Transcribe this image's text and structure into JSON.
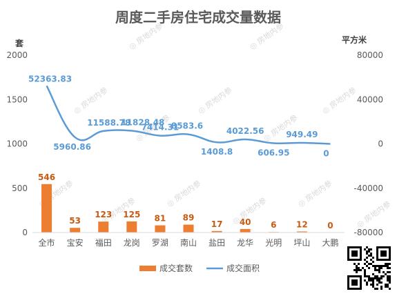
{
  "chart_data": {
    "type": "bar",
    "title": "周度二手房住宅成交量数据",
    "ylabel_left": "套",
    "ylabel_right": "平方米",
    "ylim_left": [
      0,
      2000
    ],
    "ylim_right": [
      -80000,
      80000
    ],
    "yticks_left": [
      "0",
      "500",
      "1000",
      "1500",
      "2000"
    ],
    "yticks_right": [
      "-80000",
      "-40000",
      "0",
      "40000",
      "80000"
    ],
    "categories": [
      "全市",
      "宝安",
      "福田",
      "龙岗",
      "罗湖",
      "南山",
      "盐田",
      "龙华",
      "光明",
      "坪山",
      "大鹏"
    ],
    "series": [
      {
        "name": "成交套数",
        "type": "bar",
        "axis": "left",
        "values": [
          546,
          53,
          123,
          125,
          81,
          89,
          17,
          40,
          6,
          12,
          0
        ],
        "labels": [
          "546",
          "53",
          "123",
          "125",
          "81",
          "89",
          "17",
          "40",
          "6",
          "12",
          "0"
        ],
        "color": "#ed7d31"
      },
      {
        "name": "成交面积",
        "type": "line",
        "axis": "right",
        "values": [
          52363.83,
          5960.86,
          11588.78,
          11828.48,
          7414.31,
          8583.6,
          1408.8,
          4022.56,
          606.95,
          949.49,
          0
        ],
        "labels": [
          "52363.83",
          "5960.86",
          "11588.78",
          "11828.48",
          "7414.31",
          "8583.6",
          "1408.8",
          "4022.56",
          "606.95",
          "949.49",
          "0"
        ],
        "color": "#5b9bd5"
      }
    ],
    "legend_position": "bottom",
    "grid": false
  },
  "watermark": "房地内参",
  "qr_code": "qr-code"
}
